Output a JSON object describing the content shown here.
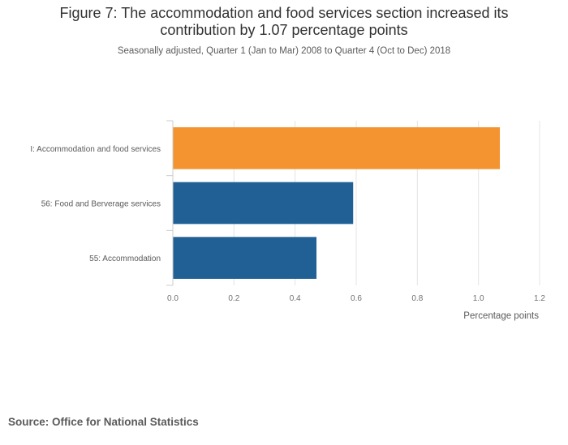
{
  "chart_data": {
    "type": "bar",
    "orientation": "horizontal",
    "title": "Figure 7: The accommodation and food services section increased its contribution by 1.07 percentage points",
    "subtitle": "Seasonally adjusted, Quarter 1 (Jan to Mar) 2008 to Quarter 4 (Oct to Dec) 2018",
    "categories": [
      "I: Accommodation and food services",
      "56: Food and Berverage services",
      "55: Accommodation"
    ],
    "values": [
      1.07,
      0.59,
      0.47
    ],
    "colors": [
      "#f39431",
      "#206095",
      "#206095"
    ],
    "xlabel": "Percentage points",
    "ylabel": "",
    "xlim": [
      0,
      1.2
    ],
    "xticks": [
      0,
      0.2,
      0.4,
      0.6,
      0.8,
      1.0,
      1.2
    ],
    "xtick_labels": [
      "0.0",
      "0.2",
      "0.4",
      "0.6",
      "0.8",
      "1.0",
      "1.2"
    ],
    "grid": true
  },
  "source": "Source: Office for National Statistics"
}
